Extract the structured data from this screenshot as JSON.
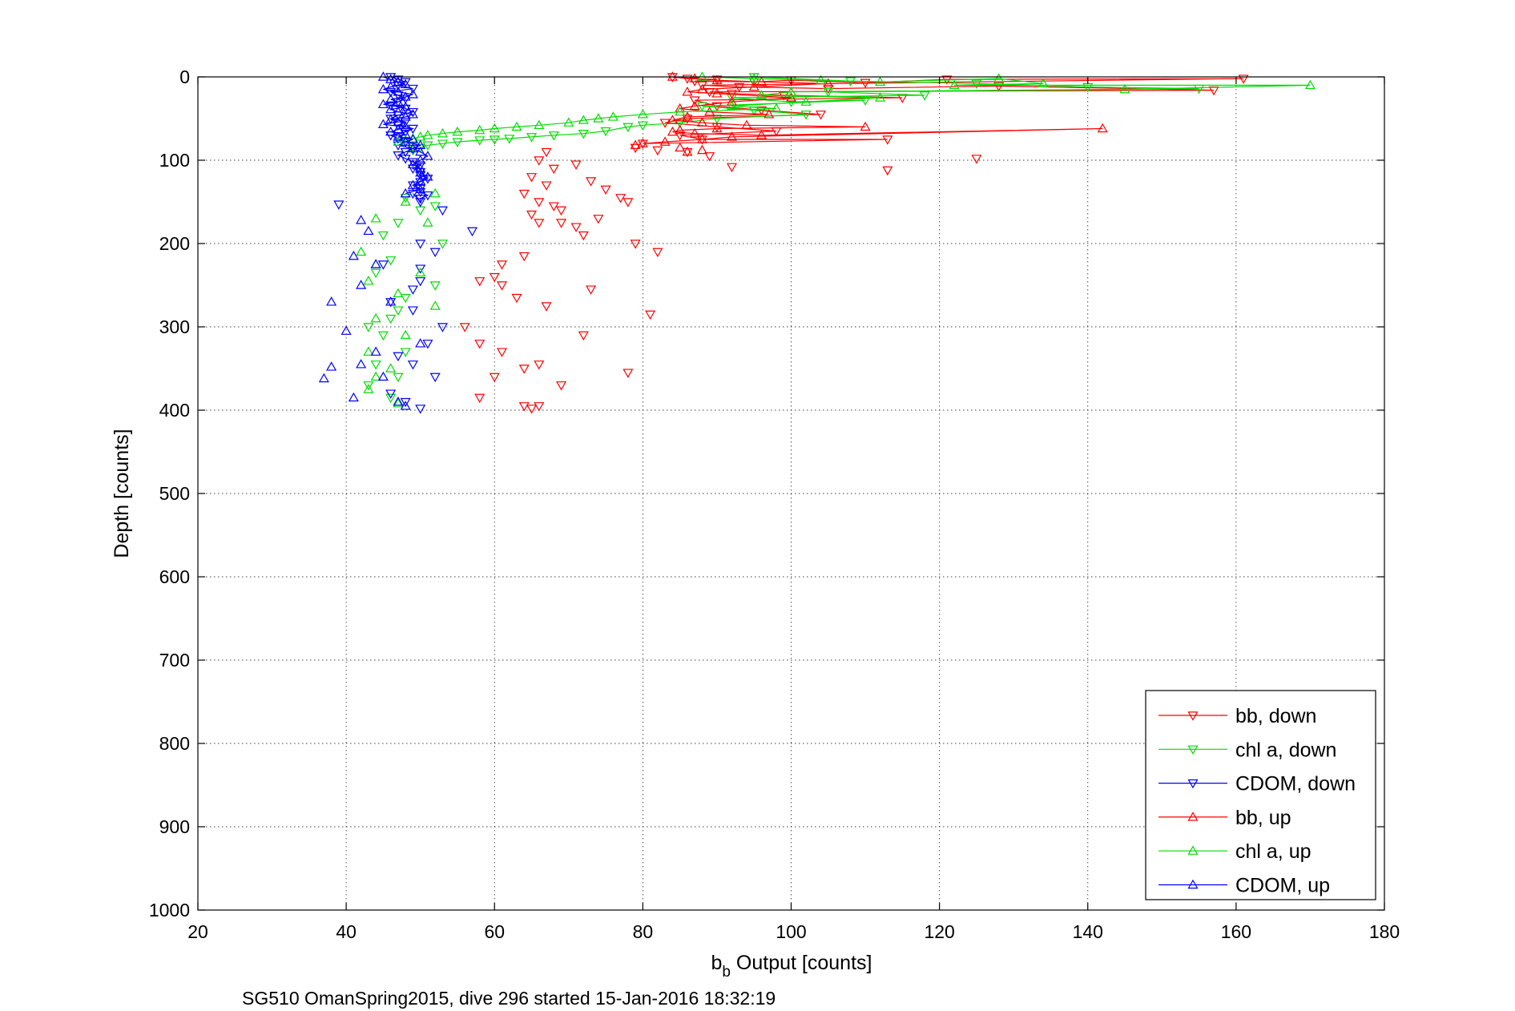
{
  "colors": {
    "bb": "#ff0000",
    "chl": "#00dd00",
    "cdom": "#0000ff",
    "axes": "#000000",
    "background": "#ffffff"
  },
  "caption": "SG510 OmanSpring2015, dive 296 started 15-Jan-2016 18:32:19",
  "chart_data": {
    "type": "scatter",
    "xlabel_main": "b",
    "xlabel_sub": "b",
    "xlabel_rest": " Output [counts]",
    "ylabel": "Depth [counts]",
    "xlim": [
      20,
      180
    ],
    "ylim": [
      0,
      1000
    ],
    "y_reversed": true,
    "grid": true,
    "legend_position": "bottom-right",
    "xticks": [
      20,
      40,
      60,
      80,
      100,
      120,
      140,
      160,
      180
    ],
    "yticks": [
      0,
      100,
      200,
      300,
      400,
      500,
      600,
      700,
      800,
      900,
      1000
    ],
    "series": [
      {
        "name": "bb, down",
        "color": "#ff0000",
        "marker": "triangle-down",
        "line_until_index": 30,
        "x": [
          84,
          86,
          90,
          87,
          95,
          100,
          110,
          121,
          161,
          88,
          93,
          105,
          128,
          157,
          89,
          92,
          99,
          115,
          87,
          90,
          96,
          104,
          86,
          83,
          90,
          98,
          85,
          88,
          113,
          80,
          79,
          82,
          86,
          89,
          113,
          125,
          92,
          67,
          66,
          68,
          65,
          71,
          67,
          64,
          66,
          69,
          73,
          75,
          77,
          74,
          68,
          66,
          65,
          71,
          78,
          79,
          72,
          69,
          82,
          64,
          61,
          58,
          61,
          60,
          63,
          67,
          73,
          56,
          81,
          58,
          61,
          72,
          60,
          64,
          66,
          69,
          78,
          58,
          66,
          64,
          65
        ],
        "y": [
          0,
          2,
          3,
          5,
          6,
          4,
          7,
          3,
          2,
          10,
          12,
          14,
          11,
          16,
          18,
          20,
          22,
          25,
          28,
          35,
          40,
          45,
          50,
          55,
          60,
          65,
          70,
          75,
          75,
          80,
          85,
          88,
          90,
          95,
          112,
          98,
          108,
          90,
          100,
          110,
          120,
          105,
          130,
          140,
          150,
          160,
          125,
          135,
          145,
          170,
          155,
          175,
          165,
          180,
          150,
          200,
          190,
          175,
          210,
          215,
          225,
          245,
          250,
          240,
          265,
          275,
          255,
          300,
          285,
          320,
          330,
          310,
          360,
          350,
          345,
          370,
          355,
          385,
          395,
          395,
          398
        ]
      },
      {
        "name": "chl a, down",
        "color": "#00dd00",
        "marker": "triangle-down",
        "line_until_index": 30,
        "x": [
          95,
          108,
          125,
          140,
          155,
          105,
          118,
          92,
          100,
          110,
          88,
          95,
          102,
          90,
          85,
          80,
          78,
          75,
          72,
          68,
          65,
          62,
          60,
          58,
          55,
          53,
          51,
          50,
          49,
          48,
          52,
          50,
          48,
          47,
          45,
          53,
          46,
          44,
          52,
          48,
          47,
          46,
          43,
          45,
          48,
          44,
          47,
          43,
          46
        ],
        "y": [
          0,
          5,
          8,
          12,
          14,
          18,
          22,
          25,
          30,
          28,
          35,
          40,
          45,
          50,
          55,
          58,
          60,
          65,
          68,
          70,
          72,
          74,
          75,
          76,
          78,
          80,
          82,
          85,
          88,
          90,
          155,
          160,
          145,
          175,
          190,
          200,
          220,
          235,
          250,
          265,
          280,
          290,
          300,
          310,
          330,
          345,
          360,
          370,
          385
        ]
      },
      {
        "name": "CDOM, down",
        "color": "#0000ff",
        "marker": "triangle-down",
        "line_until_index": 40,
        "x": [
          46,
          47,
          48,
          47,
          49,
          46,
          47,
          48,
          47,
          46,
          48,
          49,
          47,
          46,
          48,
          47,
          49,
          48,
          46,
          47,
          48,
          47,
          49,
          48,
          47,
          48,
          49,
          50,
          49,
          50,
          50,
          51,
          50,
          49,
          50,
          50,
          51,
          50,
          50,
          49,
          39,
          53,
          57,
          50,
          52,
          45,
          50,
          50,
          49,
          46,
          49,
          53,
          51,
          47,
          49,
          52,
          46,
          48,
          50
        ],
        "y": [
          0,
          3,
          6,
          10,
          14,
          18,
          22,
          26,
          30,
          34,
          38,
          42,
          46,
          50,
          54,
          58,
          62,
          66,
          70,
          74,
          78,
          82,
          86,
          90,
          94,
          98,
          102,
          106,
          110,
          114,
          118,
          122,
          126,
          130,
          134,
          138,
          142,
          146,
          150,
          140,
          153,
          160,
          185,
          200,
          210,
          225,
          230,
          245,
          255,
          270,
          280,
          300,
          320,
          335,
          345,
          360,
          380,
          390,
          398
        ]
      },
      {
        "name": "bb, up",
        "color": "#ff0000",
        "marker": "triangle-up",
        "line_until_index": 30,
        "x": [
          84,
          87,
          90,
          96,
          105,
          95,
          88,
          86,
          90,
          100,
          92,
          87,
          85,
          89,
          97,
          86,
          84,
          88,
          94,
          110,
          90,
          85,
          84,
          87,
          96,
          142,
          92,
          88,
          83,
          80,
          79,
          85,
          88,
          86
        ],
        "y": [
          0,
          2,
          4,
          6,
          8,
          12,
          15,
          18,
          20,
          25,
          30,
          35,
          38,
          42,
          45,
          48,
          52,
          55,
          58,
          60,
          62,
          64,
          66,
          68,
          70,
          62,
          72,
          75,
          78,
          80,
          82,
          85,
          88,
          90
        ]
      },
      {
        "name": "chl a, up",
        "color": "#00dd00",
        "marker": "triangle-up",
        "line_until_index": 32,
        "x": [
          88,
          95,
          104,
          112,
          128,
          134,
          122,
          170,
          145,
          100,
          96,
          112,
          102,
          92,
          98,
          85,
          80,
          76,
          74,
          72,
          70,
          66,
          63,
          60,
          58,
          55,
          53,
          51,
          50,
          49,
          48,
          47,
          52,
          48,
          44,
          51,
          42,
          44,
          50,
          43,
          47,
          52,
          44,
          48,
          43,
          46,
          44,
          43,
          47
        ],
        "y": [
          0,
          2,
          4,
          6,
          2,
          8,
          10,
          10,
          15,
          18,
          22,
          25,
          30,
          35,
          38,
          42,
          45,
          48,
          50,
          52,
          55,
          58,
          60,
          62,
          64,
          66,
          68,
          70,
          72,
          74,
          76,
          78,
          140,
          150,
          170,
          175,
          210,
          225,
          235,
          245,
          260,
          275,
          290,
          310,
          330,
          350,
          360,
          375,
          392
        ]
      },
      {
        "name": "CDOM, up",
        "color": "#0000ff",
        "marker": "triangle-up",
        "line_until_index": 40,
        "x": [
          45,
          46,
          47,
          48,
          46,
          45,
          47,
          49,
          48,
          46,
          47,
          45,
          48,
          46,
          47,
          49,
          48,
          46,
          47,
          45,
          48,
          47,
          46,
          48,
          47,
          49,
          48,
          50,
          49,
          50,
          51,
          50,
          49,
          50,
          50,
          51,
          50,
          49,
          50,
          48,
          42,
          43,
          41,
          44,
          38,
          40,
          37,
          38,
          41,
          44,
          42,
          45,
          47,
          50,
          46,
          42,
          48
        ],
        "y": [
          0,
          3,
          6,
          9,
          12,
          15,
          18,
          21,
          24,
          27,
          30,
          33,
          36,
          39,
          42,
          45,
          48,
          51,
          54,
          57,
          60,
          63,
          66,
          69,
          72,
          75,
          78,
          82,
          86,
          90,
          95,
          100,
          105,
          110,
          115,
          120,
          125,
          130,
          135,
          140,
          172,
          185,
          215,
          225,
          270,
          305,
          362,
          348,
          385,
          330,
          345,
          360,
          390,
          320,
          270,
          250,
          395
        ]
      }
    ]
  }
}
